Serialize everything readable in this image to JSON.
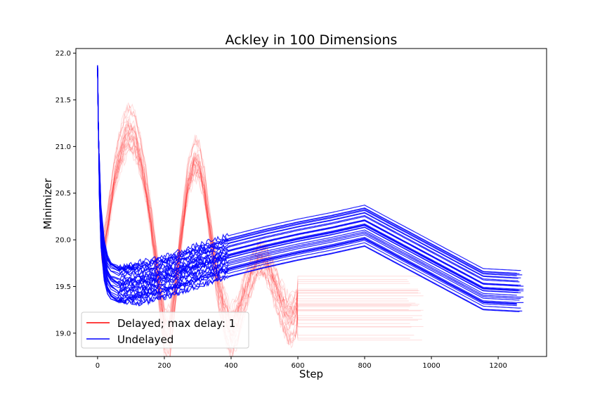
{
  "chart_data": {
    "type": "line",
    "title": "Ackley in 100 Dimensions",
    "xlabel": "Step",
    "ylabel": "Minimizer",
    "xlim": [
      -65,
      1345
    ],
    "ylim": [
      18.75,
      22.05
    ],
    "xticks": [
      0,
      200,
      400,
      600,
      800,
      1000,
      1200
    ],
    "yticks": [
      19.0,
      19.5,
      20.0,
      20.5,
      21.0,
      21.5,
      22.0
    ],
    "ytick_labels": [
      "19.0",
      "19.5",
      "20.0",
      "20.5",
      "21.0",
      "21.5",
      "22.0"
    ],
    "grid": false,
    "legend": {
      "placement": "lower-left"
    },
    "colors": {
      "delayed": "#ff0000",
      "undelayed": "#0000ff"
    },
    "series": [
      {
        "name": "Delayed; max delay: 1",
        "color": "#ff0000",
        "runs": 30,
        "x": [
          0,
          3,
          6,
          10,
          15,
          25,
          35,
          50,
          70,
          90,
          110,
          130,
          150,
          170,
          185,
          200,
          215,
          230,
          250,
          270,
          290,
          305,
          320,
          340,
          360,
          380,
          400,
          420,
          440,
          460,
          480,
          500,
          515,
          530,
          550,
          570,
          585,
          600,
          980
        ],
        "y": [
          21.8,
          21.0,
          20.4,
          19.95,
          19.9,
          20.05,
          20.3,
          20.65,
          20.95,
          21.15,
          21.1,
          20.85,
          20.45,
          19.95,
          19.5,
          19.1,
          19.0,
          19.4,
          20.05,
          20.6,
          20.85,
          20.8,
          20.55,
          20.05,
          19.55,
          19.25,
          19.05,
          19.2,
          19.45,
          19.65,
          19.8,
          19.8,
          19.7,
          19.55,
          19.35,
          19.2,
          19.2,
          19.3,
          19.3
        ]
      },
      {
        "name": "Undelayed",
        "color": "#0000ff",
        "runs": 30,
        "x": [
          0,
          2,
          5,
          10,
          20,
          30,
          40,
          60,
          80,
          100,
          200,
          300,
          400,
          500,
          600,
          700,
          800,
          1155,
          1260
        ],
        "y": [
          21.85,
          21.3,
          20.7,
          20.15,
          19.78,
          19.62,
          19.55,
          19.5,
          19.5,
          19.52,
          19.6,
          19.72,
          19.83,
          19.92,
          20.0,
          20.07,
          20.15,
          19.47,
          19.45
        ]
      }
    ]
  }
}
